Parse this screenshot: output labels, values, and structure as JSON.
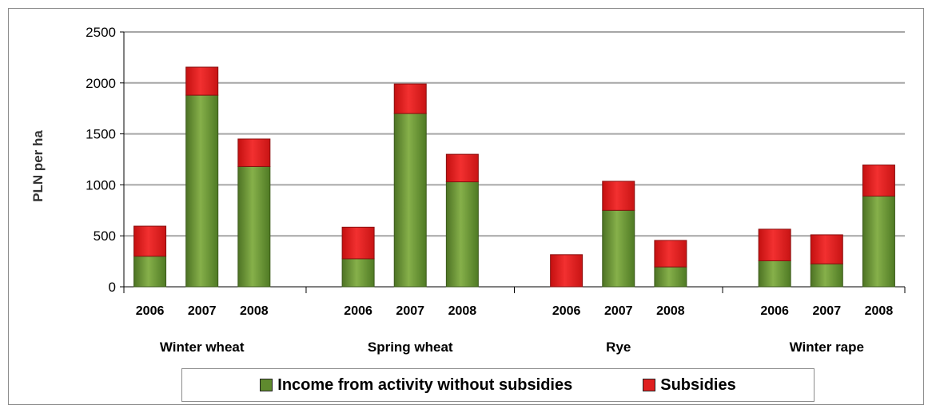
{
  "chart_data": {
    "type": "bar",
    "stacked": true,
    "ylabel": "PLN per ha",
    "ylim": [
      0,
      2500
    ],
    "yticks": [
      0,
      500,
      1000,
      1500,
      2000,
      2500
    ],
    "grid": true,
    "legend_position": "bottom",
    "groups": [
      {
        "label": "Winter wheat",
        "categories": [
          "2006",
          "2007",
          "2008"
        ]
      },
      {
        "label": "Spring wheat",
        "categories": [
          "2006",
          "2007",
          "2008"
        ]
      },
      {
        "label": "Rye",
        "categories": [
          "2006",
          "2007",
          "2008"
        ]
      },
      {
        "label": "Winter rape",
        "categories": [
          "2006",
          "2007",
          "2008"
        ]
      }
    ],
    "series": [
      {
        "name": "Income from activity  without subsidies",
        "color": "#5f8a2e",
        "values": [
          300,
          1880,
          1180,
          275,
          1700,
          1030,
          0,
          750,
          195,
          255,
          225,
          890
        ]
      },
      {
        "name": "Subsidies",
        "color": "#e02020",
        "values": [
          295,
          275,
          270,
          310,
          290,
          270,
          315,
          285,
          260,
          310,
          285,
          305
        ]
      }
    ]
  }
}
